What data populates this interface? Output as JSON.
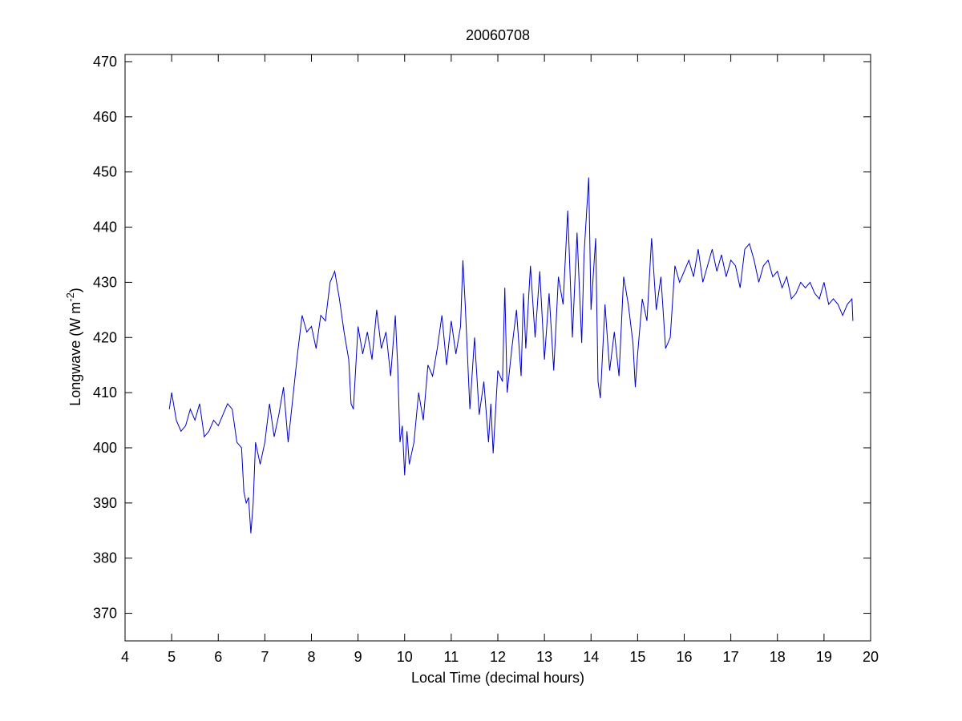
{
  "chart_data": {
    "type": "line",
    "title": "20060708",
    "xlabel": "Local Time (decimal hours)",
    "ylabel": [
      "Longwave (W m",
      "-2",
      ")"
    ],
    "xlim": [
      4,
      20
    ],
    "xticks": [
      4,
      5,
      6,
      7,
      8,
      9,
      10,
      11,
      12,
      13,
      14,
      15,
      16,
      17,
      18,
      19,
      20
    ],
    "ylim": [
      365,
      471.3
    ],
    "yticks": [
      370,
      380,
      390,
      400,
      410,
      420,
      430,
      440,
      450,
      460,
      470
    ],
    "series": [
      {
        "color": "#0000c8",
        "x": [
          4.95,
          5.0,
          5.1,
          5.2,
          5.3,
          5.4,
          5.5,
          5.6,
          5.7,
          5.8,
          5.9,
          6.0,
          6.1,
          6.2,
          6.3,
          6.4,
          6.5,
          6.55,
          6.6,
          6.65,
          6.7,
          6.75,
          6.8,
          6.9,
          7.0,
          7.1,
          7.2,
          7.3,
          7.4,
          7.5,
          7.6,
          7.7,
          7.8,
          7.9,
          8.0,
          8.1,
          8.2,
          8.3,
          8.4,
          8.5,
          8.6,
          8.7,
          8.8,
          8.85,
          8.9,
          9.0,
          9.1,
          9.2,
          9.3,
          9.4,
          9.5,
          9.6,
          9.7,
          9.8,
          9.85,
          9.9,
          9.95,
          10.0,
          10.05,
          10.1,
          10.2,
          10.3,
          10.4,
          10.5,
          10.6,
          10.7,
          10.8,
          10.9,
          11.0,
          11.1,
          11.2,
          11.25,
          11.3,
          11.4,
          11.5,
          11.6,
          11.7,
          11.8,
          11.85,
          11.9,
          12.0,
          12.1,
          12.15,
          12.2,
          12.3,
          12.4,
          12.5,
          12.55,
          12.6,
          12.7,
          12.8,
          12.9,
          13.0,
          13.1,
          13.2,
          13.3,
          13.4,
          13.5,
          13.6,
          13.7,
          13.8,
          13.85,
          13.95,
          14.0,
          14.1,
          14.15,
          14.2,
          14.3,
          14.4,
          14.5,
          14.6,
          14.7,
          14.8,
          14.9,
          14.95,
          15.0,
          15.1,
          15.2,
          15.3,
          15.4,
          15.5,
          15.6,
          15.7,
          15.8,
          15.9,
          16.0,
          16.1,
          16.2,
          16.3,
          16.4,
          16.5,
          16.6,
          16.7,
          16.8,
          16.9,
          17.0,
          17.1,
          17.2,
          17.3,
          17.4,
          17.5,
          17.6,
          17.7,
          17.8,
          17.9,
          18.0,
          18.1,
          18.2,
          18.3,
          18.4,
          18.5,
          18.6,
          18.7,
          18.8,
          18.9,
          19.0,
          19.1,
          19.2,
          19.3,
          19.4,
          19.5,
          19.6,
          19.62
        ],
        "values": [
          407,
          410,
          405,
          403,
          404,
          407,
          405,
          408,
          402,
          403,
          405,
          404,
          406,
          408,
          407,
          401,
          400,
          392,
          390,
          391,
          384.5,
          390,
          401,
          397,
          401,
          408,
          402,
          406,
          411,
          401,
          409,
          417,
          424,
          421,
          422,
          418,
          424,
          423,
          430,
          432,
          427,
          421,
          416,
          408,
          407,
          422,
          417,
          421,
          416,
          425,
          418,
          421,
          413,
          424,
          415,
          401,
          404,
          395,
          403,
          397,
          401,
          410,
          405,
          415,
          413,
          418,
          424,
          415,
          423,
          417,
          422,
          434,
          426,
          407,
          420,
          406,
          412,
          401,
          408,
          399,
          414,
          412,
          429,
          410,
          418,
          425,
          413,
          428,
          418,
          433,
          420,
          432,
          416,
          428,
          414,
          431,
          426,
          443,
          420,
          439,
          419,
          435,
          449,
          425,
          438,
          412,
          409,
          426,
          414,
          421,
          413,
          431,
          426,
          419,
          411,
          417,
          427,
          423,
          438,
          425,
          431,
          418,
          420,
          433,
          430,
          432,
          434,
          431,
          436,
          430,
          433,
          436,
          432,
          435,
          431,
          434,
          433,
          429,
          436,
          437,
          434,
          430,
          433,
          434,
          431,
          432,
          429,
          431,
          427,
          428,
          430,
          429,
          430,
          428,
          427,
          430,
          426,
          427,
          426,
          424,
          426,
          427,
          423
        ]
      }
    ]
  }
}
